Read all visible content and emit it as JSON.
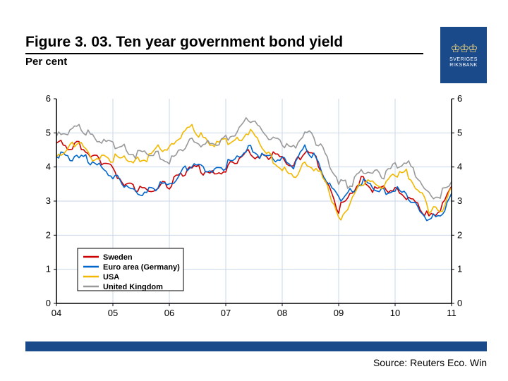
{
  "title": "Figure 3. 03. Ten year government bond yield",
  "subtitle": "Per cent",
  "logo": {
    "name": "SVERIGES",
    "name2": "RIKSBANK"
  },
  "source_label": "Source: Reuters Eco. Win",
  "chart": {
    "type": "line",
    "background_color": "#ffffff",
    "axis_color": "#000000",
    "grid_color": "#c9d6e8",
    "grid_on": true,
    "ylim": [
      0,
      6
    ],
    "ytick_step": 1,
    "xlim": [
      2004,
      2011
    ],
    "xtick_labels": [
      "04",
      "05",
      "06",
      "07",
      "08",
      "09",
      "10",
      "11"
    ],
    "label_fontsize": 13,
    "line_width": 1.6,
    "legend": {
      "position": "bottom-left-inside",
      "border_color": "#000000",
      "fontsize": 11
    },
    "series": [
      {
        "name": "Sweden",
        "color": "#cc0000",
        "x": [
          2004.0,
          2004.2,
          2004.4,
          2004.6,
          2004.8,
          2005.0,
          2005.2,
          2005.4,
          2005.6,
          2005.8,
          2006.0,
          2006.2,
          2006.4,
          2006.6,
          2006.8,
          2007.0,
          2007.2,
          2007.4,
          2007.6,
          2007.8,
          2008.0,
          2008.2,
          2008.4,
          2008.6,
          2008.8,
          2009.0,
          2009.2,
          2009.4,
          2009.6,
          2009.8,
          2010.0,
          2010.2,
          2010.4,
          2010.6,
          2010.8,
          2011.0
        ],
        "y": [
          4.7,
          4.5,
          4.6,
          4.3,
          4.1,
          3.9,
          3.4,
          3.3,
          3.2,
          3.4,
          3.4,
          3.7,
          4.0,
          3.8,
          3.7,
          3.9,
          4.1,
          4.4,
          4.2,
          4.3,
          4.2,
          4.0,
          4.4,
          4.2,
          3.4,
          2.7,
          3.1,
          3.6,
          3.3,
          3.3,
          3.3,
          3.1,
          2.8,
          2.5,
          2.7,
          3.3
        ]
      },
      {
        "name": "Euro area (Germany)",
        "color": "#0066cc",
        "x": [
          2004.0,
          2004.2,
          2004.4,
          2004.6,
          2004.8,
          2005.0,
          2005.2,
          2005.4,
          2005.6,
          2005.8,
          2006.0,
          2006.2,
          2006.4,
          2006.6,
          2006.8,
          2007.0,
          2007.2,
          2007.4,
          2007.6,
          2007.8,
          2008.0,
          2008.2,
          2008.4,
          2008.6,
          2008.8,
          2009.0,
          2009.2,
          2009.4,
          2009.6,
          2009.8,
          2010.0,
          2010.2,
          2010.4,
          2010.6,
          2010.8,
          2011.0
        ],
        "y": [
          4.3,
          4.2,
          4.3,
          4.1,
          3.9,
          3.7,
          3.4,
          3.2,
          3.2,
          3.4,
          3.4,
          3.8,
          4.0,
          3.9,
          3.8,
          4.0,
          4.2,
          4.5,
          4.3,
          4.2,
          4.2,
          4.0,
          4.5,
          4.2,
          3.5,
          3.0,
          3.2,
          3.5,
          3.3,
          3.2,
          3.3,
          3.1,
          2.7,
          2.4,
          2.5,
          3.1
        ]
      },
      {
        "name": "USA",
        "color": "#f2b800",
        "x": [
          2004.0,
          2004.2,
          2004.4,
          2004.6,
          2004.8,
          2005.0,
          2005.2,
          2005.4,
          2005.6,
          2005.8,
          2006.0,
          2006.2,
          2006.4,
          2006.6,
          2006.8,
          2007.0,
          2007.2,
          2007.4,
          2007.6,
          2007.8,
          2008.0,
          2008.2,
          2008.4,
          2008.6,
          2008.8,
          2009.0,
          2009.2,
          2009.4,
          2009.6,
          2009.8,
          2010.0,
          2010.2,
          2010.4,
          2010.6,
          2010.8,
          2011.0
        ],
        "y": [
          4.3,
          4.5,
          4.7,
          4.2,
          4.2,
          4.2,
          4.2,
          4.1,
          4.2,
          4.5,
          4.5,
          4.9,
          5.1,
          4.8,
          4.6,
          4.7,
          4.7,
          5.0,
          4.6,
          4.2,
          3.9,
          3.6,
          4.0,
          3.9,
          3.4,
          2.4,
          2.9,
          3.5,
          3.5,
          3.4,
          3.7,
          3.8,
          3.3,
          2.7,
          2.6,
          3.4
        ]
      },
      {
        "name": "United Kingdom",
        "color": "#999999",
        "x": [
          2004.0,
          2004.2,
          2004.4,
          2004.6,
          2004.8,
          2005.0,
          2005.2,
          2005.4,
          2005.6,
          2005.8,
          2006.0,
          2006.2,
          2006.4,
          2006.6,
          2006.8,
          2007.0,
          2007.2,
          2007.4,
          2007.6,
          2007.8,
          2008.0,
          2008.2,
          2008.4,
          2008.6,
          2008.8,
          2009.0,
          2009.2,
          2009.4,
          2009.6,
          2009.8,
          2010.0,
          2010.2,
          2010.4,
          2010.6,
          2010.8,
          2011.0
        ],
        "y": [
          4.9,
          5.0,
          5.1,
          4.9,
          4.7,
          4.6,
          4.5,
          4.3,
          4.3,
          4.3,
          4.1,
          4.4,
          4.7,
          4.6,
          4.6,
          4.8,
          5.0,
          5.4,
          5.1,
          4.8,
          4.6,
          4.5,
          5.0,
          4.7,
          4.2,
          3.5,
          3.4,
          3.8,
          3.8,
          3.7,
          4.0,
          4.1,
          3.6,
          3.1,
          3.1,
          3.6
        ]
      }
    ]
  }
}
